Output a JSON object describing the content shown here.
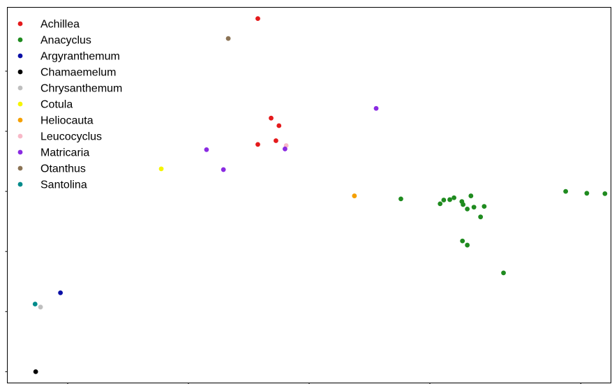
{
  "chart_data": {
    "type": "scatter",
    "title": "",
    "xlabel": "",
    "ylabel": "",
    "grid": false,
    "legend_position": "top-left",
    "xlim": [
      0,
      100
    ],
    "ylim": [
      0,
      100
    ],
    "x_ticks": [
      10,
      30,
      50,
      70,
      95
    ],
    "y_ticks": [
      3,
      19,
      35,
      51,
      67,
      83
    ],
    "series": [
      {
        "name": "Achillea",
        "color": "#e41a1c",
        "points": [
          [
            41.5,
            97
          ],
          [
            43.7,
            70.5
          ],
          [
            45,
            68.5
          ],
          [
            44.5,
            64.5
          ],
          [
            41.5,
            63.5
          ]
        ]
      },
      {
        "name": "Anacyclus",
        "color": "#1f8b1f",
        "points": [
          [
            65.2,
            49
          ],
          [
            71.7,
            47.7
          ],
          [
            72.3,
            48.7
          ],
          [
            73.3,
            48.8
          ],
          [
            74,
            49.3
          ],
          [
            75.3,
            48.3
          ],
          [
            75.5,
            47.5
          ],
          [
            76.8,
            49.8
          ],
          [
            76.2,
            46.3
          ],
          [
            77.3,
            46.8
          ],
          [
            79,
            47
          ],
          [
            78.4,
            44.2
          ],
          [
            75.4,
            37.8
          ],
          [
            76.2,
            36.7
          ],
          [
            82.2,
            29.3
          ],
          [
            92.5,
            51
          ],
          [
            96,
            50.5
          ],
          [
            99,
            50.4
          ]
        ]
      },
      {
        "name": "Argyranthemum",
        "color": "#0a0fa6",
        "points": [
          [
            8.8,
            24
          ]
        ]
      },
      {
        "name": "Chamaemelum",
        "color": "#000000",
        "points": [
          [
            4.7,
            3
          ]
        ]
      },
      {
        "name": "Chrysanthemum",
        "color": "#bfbfbf",
        "points": [
          [
            5.5,
            20.2
          ]
        ]
      },
      {
        "name": "Cotula",
        "color": "#f5f500",
        "points": [
          [
            25.5,
            57
          ]
        ]
      },
      {
        "name": "Heliocauta",
        "color": "#f5a000",
        "points": [
          [
            57.5,
            49.8
          ]
        ]
      },
      {
        "name": "Leucocyclus",
        "color": "#f8b9c8",
        "points": [
          [
            46.2,
            63.2
          ]
        ]
      },
      {
        "name": "Matricaria",
        "color": "#8a2be2",
        "points": [
          [
            61.1,
            73.1
          ],
          [
            33,
            62.1
          ],
          [
            46,
            62.3
          ],
          [
            35.8,
            56.8
          ]
        ]
      },
      {
        "name": "Otanthus",
        "color": "#8b7355",
        "points": [
          [
            36.6,
            91.7
          ]
        ]
      },
      {
        "name": "Santolina",
        "color": "#008b8b",
        "points": [
          [
            4.6,
            21
          ]
        ]
      }
    ]
  }
}
